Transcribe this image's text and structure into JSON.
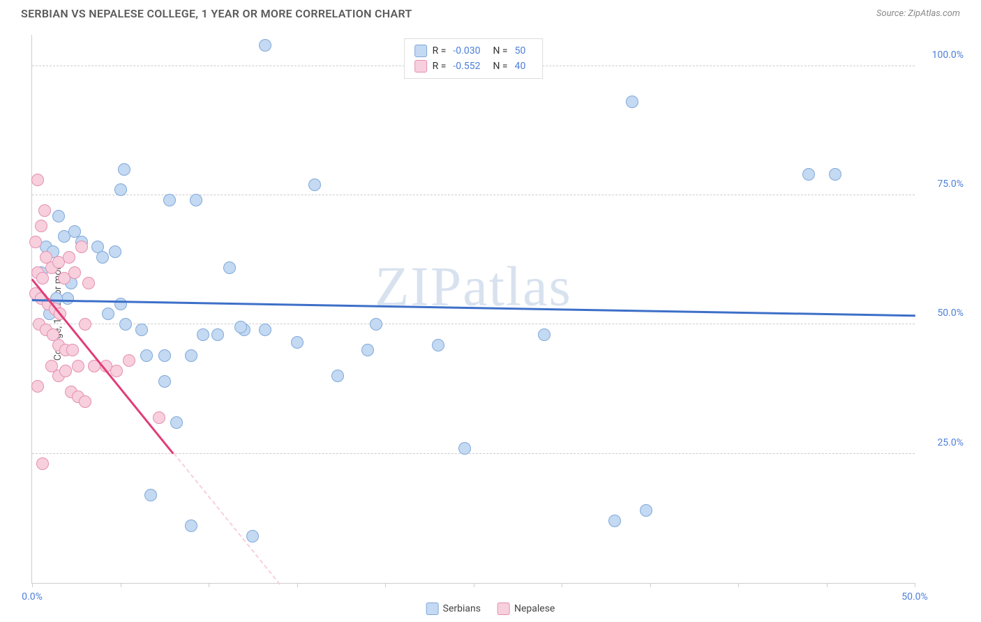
{
  "title": "SERBIAN VS NEPALESE COLLEGE, 1 YEAR OR MORE CORRELATION CHART",
  "source": "Source: ZipAtlas.com",
  "y_axis_label": "College, 1 year or more",
  "watermark": "ZIPatlas",
  "chart": {
    "type": "scatter",
    "xlim": [
      0,
      50
    ],
    "ylim": [
      0,
      106
    ],
    "y_gridlines": [
      25,
      50,
      75,
      100
    ],
    "y_tick_labels": [
      "25.0%",
      "50.0%",
      "75.0%",
      "100.0%"
    ],
    "x_ticks": [
      0,
      5,
      10,
      15,
      20,
      25,
      30,
      35,
      40,
      45,
      50
    ],
    "x_visible_labels": {
      "0": "0.0%",
      "50": "50.0%"
    },
    "background_color": "#ffffff",
    "grid_color": "#cccccc",
    "axis_color": "#cccccc",
    "label_color": "#4d7fd8",
    "marker_radius": 9,
    "series": [
      {
        "name": "Serbians",
        "fill": "#c4d9f2",
        "stroke": "#7fa8d9",
        "line_color": "#3d6fc8",
        "trend": {
          "x1": 0,
          "y1": 55,
          "x2": 50,
          "y2": 52,
          "solid_until_x": 50
        },
        "R": "-0.030",
        "N": "50",
        "points": [
          [
            13.2,
            104
          ],
          [
            34,
            93
          ],
          [
            45.5,
            79
          ],
          [
            5.2,
            80
          ],
          [
            16,
            77
          ],
          [
            5,
            76
          ],
          [
            1.5,
            71
          ],
          [
            1.8,
            67
          ],
          [
            2.4,
            68
          ],
          [
            0.8,
            65
          ],
          [
            1.2,
            64
          ],
          [
            2.8,
            66
          ],
          [
            3.7,
            65
          ],
          [
            4.7,
            64
          ],
          [
            4,
            63
          ],
          [
            7.8,
            74
          ],
          [
            9.3,
            74
          ],
          [
            11.2,
            61
          ],
          [
            0.5,
            60
          ],
          [
            2.2,
            58
          ],
          [
            2,
            55
          ],
          [
            1.4,
            55
          ],
          [
            1,
            52
          ],
          [
            4.3,
            52
          ],
          [
            5.3,
            50
          ],
          [
            6.2,
            49
          ],
          [
            5,
            54
          ],
          [
            9.7,
            48
          ],
          [
            10.5,
            48
          ],
          [
            12,
            49
          ],
          [
            13.2,
            49
          ],
          [
            11.8,
            49.5
          ],
          [
            6.5,
            44
          ],
          [
            7.5,
            44
          ],
          [
            9,
            44
          ],
          [
            19.5,
            50
          ],
          [
            19,
            45
          ],
          [
            23,
            46
          ],
          [
            15,
            46.5
          ],
          [
            7.5,
            39
          ],
          [
            8.2,
            31
          ],
          [
            9,
            11
          ],
          [
            12.5,
            9
          ],
          [
            6.7,
            17
          ],
          [
            17.3,
            40
          ],
          [
            24.5,
            26
          ],
          [
            34.8,
            14
          ],
          [
            33,
            12
          ],
          [
            29,
            48
          ],
          [
            44,
            79
          ]
        ]
      },
      {
        "name": "Nepalese",
        "fill": "#f7cfdd",
        "stroke": "#e48fb0",
        "line_color": "#e03d78",
        "trend": {
          "x1": 0,
          "y1": 59,
          "x2": 14,
          "y2": 0,
          "solid_until_x": 8
        },
        "R": "-0.552",
        "N": "40",
        "points": [
          [
            0.3,
            78
          ],
          [
            0.7,
            72
          ],
          [
            0.5,
            69
          ],
          [
            0.2,
            66
          ],
          [
            0.8,
            63
          ],
          [
            0.3,
            60
          ],
          [
            0.6,
            59
          ],
          [
            1.1,
            61
          ],
          [
            1.5,
            62
          ],
          [
            1.8,
            59
          ],
          [
            2.1,
            63
          ],
          [
            2.4,
            60
          ],
          [
            2.8,
            65
          ],
          [
            3.2,
            58
          ],
          [
            0.2,
            56
          ],
          [
            0.5,
            55
          ],
          [
            0.9,
            54
          ],
          [
            1.3,
            53
          ],
          [
            1.6,
            52
          ],
          [
            0.4,
            50
          ],
          [
            0.8,
            49
          ],
          [
            1.2,
            48
          ],
          [
            1.5,
            46
          ],
          [
            1.9,
            45
          ],
          [
            2.3,
            45
          ],
          [
            2.6,
            42
          ],
          [
            3,
            50
          ],
          [
            1.1,
            42
          ],
          [
            1.5,
            40
          ],
          [
            1.9,
            41
          ],
          [
            2.2,
            37
          ],
          [
            2.6,
            36
          ],
          [
            3,
            35
          ],
          [
            3.5,
            42
          ],
          [
            4.2,
            42
          ],
          [
            4.8,
            41
          ],
          [
            5.5,
            43
          ],
          [
            7.2,
            32
          ],
          [
            0.6,
            23
          ],
          [
            0.3,
            38
          ]
        ]
      }
    ]
  },
  "legend_top": [
    {
      "swatch_fill": "#c4d9f2",
      "swatch_stroke": "#7fa8d9",
      "r_label": "R =",
      "r_val": "-0.030",
      "n_label": "N =",
      "n_val": "50"
    },
    {
      "swatch_fill": "#f7cfdd",
      "swatch_stroke": "#e48fb0",
      "r_label": "R =",
      "r_val": "-0.552",
      "n_label": "N =",
      "n_val": "40"
    }
  ],
  "legend_bottom": [
    {
      "swatch_fill": "#c4d9f2",
      "swatch_stroke": "#7fa8d9",
      "label": "Serbians"
    },
    {
      "swatch_fill": "#f7cfdd",
      "swatch_stroke": "#e48fb0",
      "label": "Nepalese"
    }
  ]
}
